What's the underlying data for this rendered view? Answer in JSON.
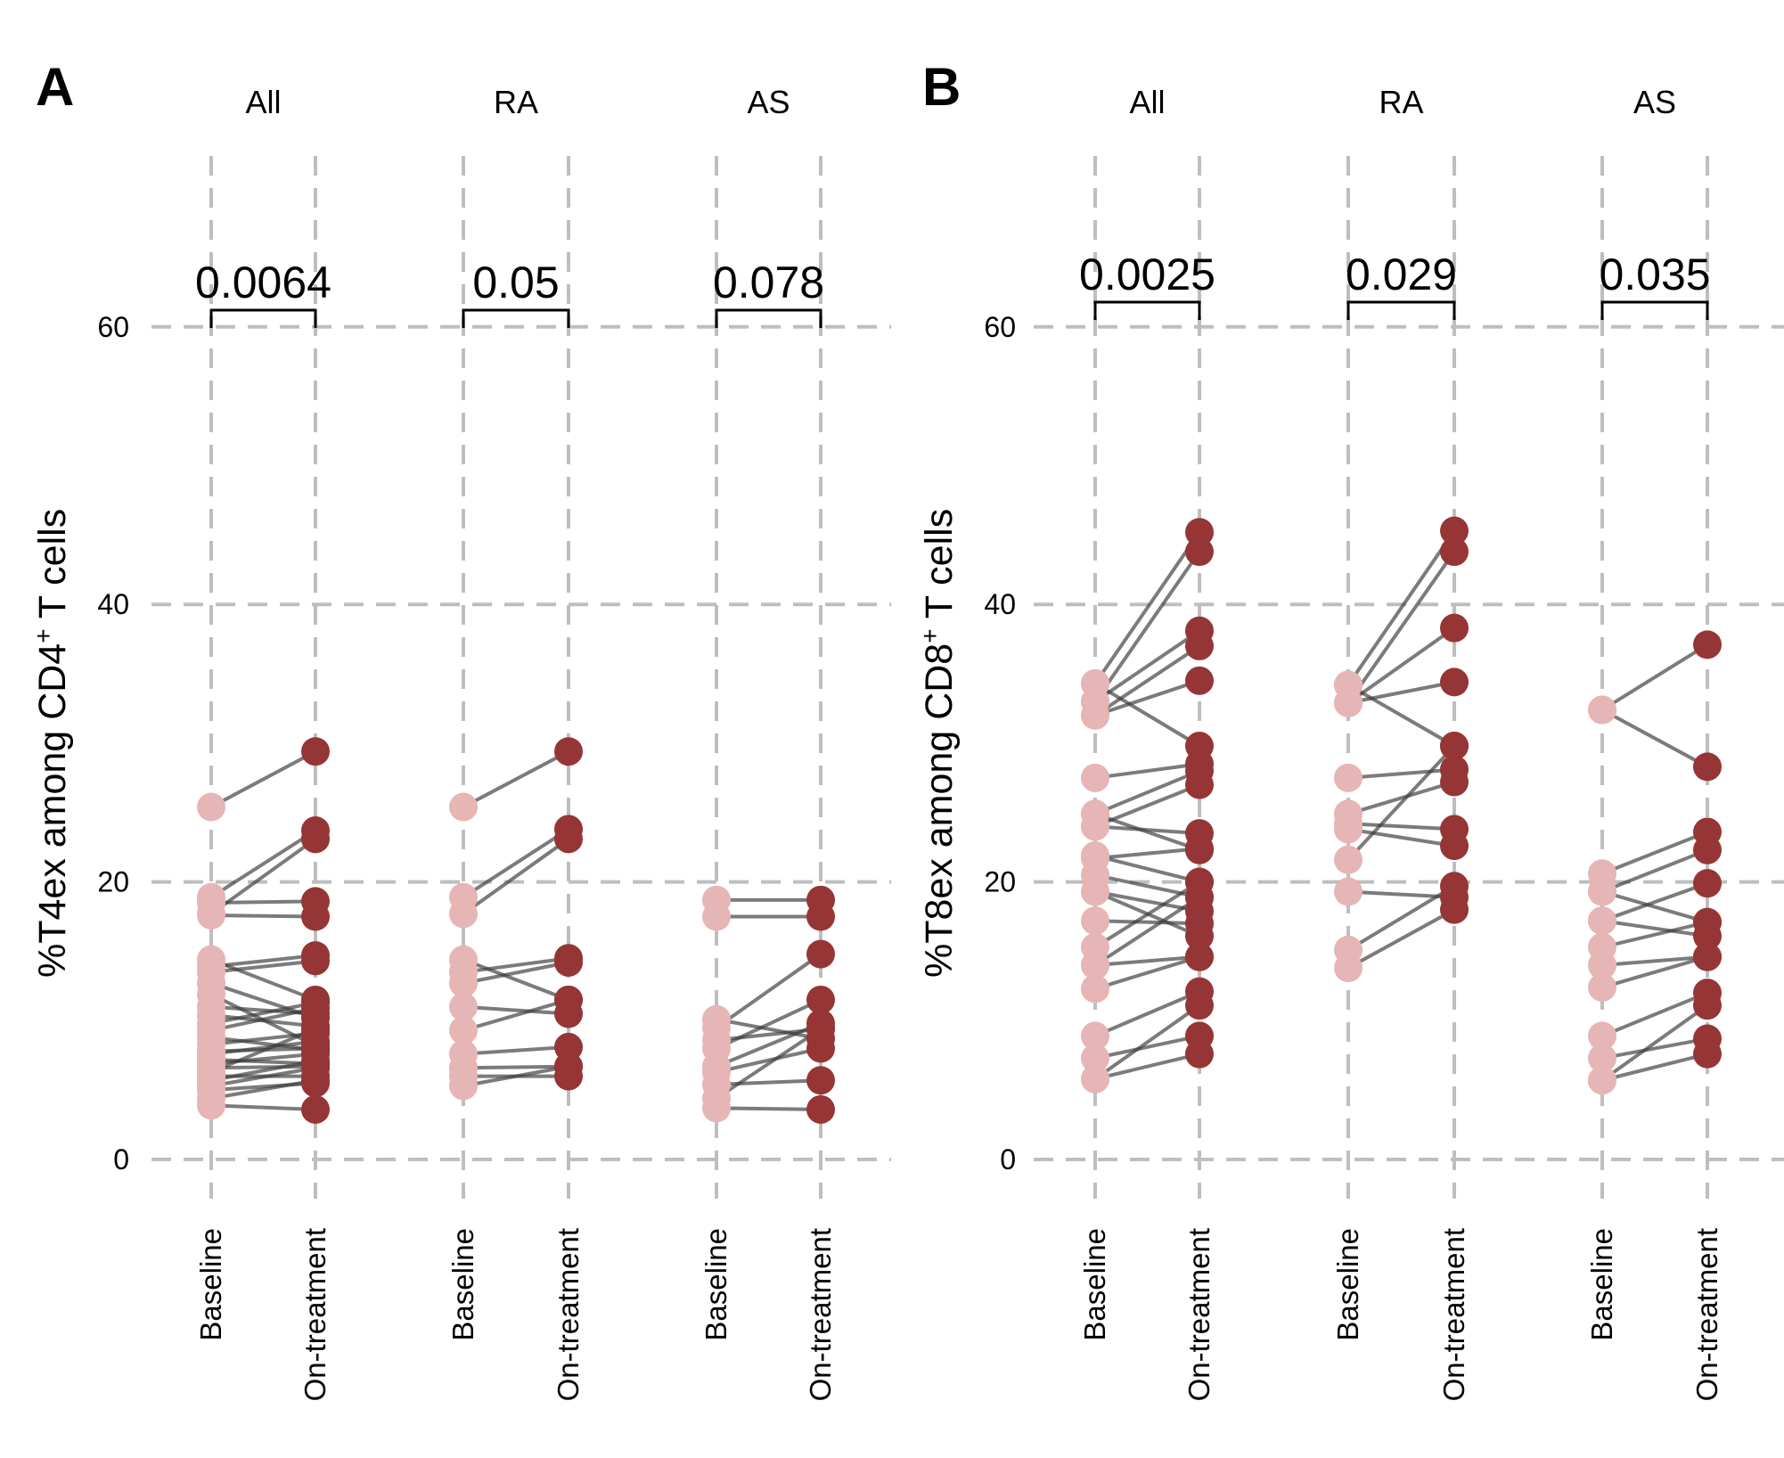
{
  "colors": {
    "baseline": "#e6b5b5",
    "on_treatment": "#963535",
    "pair_line": "#3c3c3c",
    "grid": "#bebebe"
  },
  "chart_data": [
    {
      "panel": "A",
      "type": "paired-dot",
      "ylabel_prefix": "%T4ex among CD4",
      "ylabel_sup": "+",
      "ylabel_suffix": " T cells",
      "ylim": [
        0,
        65
      ],
      "yticks": [
        0,
        20,
        40,
        60
      ],
      "grid": true,
      "x_categories": [
        "Baseline",
        "On-treatment"
      ],
      "facets": [
        {
          "title": "All",
          "p_value": "0.0064",
          "pairs": [
            [
              25.4,
              29.4
            ],
            [
              18.9,
              23.7
            ],
            [
              17.7,
              23.1
            ],
            [
              18.5,
              18.6
            ],
            [
              17.6,
              17.5
            ],
            [
              14.4,
              11.5
            ],
            [
              13.9,
              14.7
            ],
            [
              13.5,
              14.3
            ],
            [
              12.7,
              10.2
            ],
            [
              11.9,
              8.2
            ],
            [
              11.0,
              10.5
            ],
            [
              10.4,
              9.6
            ],
            [
              9.8,
              11.3
            ],
            [
              9.3,
              10.9
            ],
            [
              8.8,
              7.9
            ],
            [
              8.3,
              9.1
            ],
            [
              7.8,
              8.0
            ],
            [
              7.6,
              8.5
            ],
            [
              7.2,
              6.9
            ],
            [
              6.9,
              7.6
            ],
            [
              6.6,
              6.7
            ],
            [
              6.3,
              9.4
            ],
            [
              6.0,
              6.0
            ],
            [
              5.7,
              7.1
            ],
            [
              5.3,
              6.6
            ],
            [
              5.0,
              5.5
            ],
            [
              4.4,
              5.7
            ],
            [
              3.9,
              3.6
            ]
          ]
        },
        {
          "title": "RA",
          "p_value": "0.05",
          "pairs": [
            [
              25.4,
              29.4
            ],
            [
              18.9,
              23.8
            ],
            [
              17.7,
              23.1
            ],
            [
              14.4,
              11.5
            ],
            [
              13.5,
              14.5
            ],
            [
              12.7,
              14.2
            ],
            [
              11.0,
              10.5
            ],
            [
              9.3,
              11.5
            ],
            [
              7.6,
              8.1
            ],
            [
              6.6,
              6.7
            ],
            [
              6.0,
              6.0
            ],
            [
              5.3,
              6.7
            ]
          ]
        },
        {
          "title": "AS",
          "p_value": "0.078",
          "pairs": [
            [
              18.7,
              18.7
            ],
            [
              17.5,
              17.5
            ],
            [
              10.1,
              8.7
            ],
            [
              9.5,
              14.8
            ],
            [
              8.6,
              9.4
            ],
            [
              8.0,
              11.5
            ],
            [
              6.7,
              9.8
            ],
            [
              6.3,
              8.0
            ],
            [
              5.4,
              5.7
            ],
            [
              4.4,
              9.4
            ],
            [
              3.7,
              3.6
            ]
          ]
        }
      ]
    },
    {
      "panel": "B",
      "type": "paired-dot",
      "ylabel_prefix": "%T8ex among CD8",
      "ylabel_sup": "+",
      "ylabel_suffix": " T cells",
      "ylim": [
        0,
        65
      ],
      "yticks": [
        0,
        20,
        40,
        60
      ],
      "grid": true,
      "x_categories": [
        "Baseline",
        "On-treatment"
      ],
      "facets": [
        {
          "title": "All",
          "p_value": "0.0025",
          "pairs": [
            [
              34.3,
              45.2
            ],
            [
              33.0,
              43.8
            ],
            [
              33.0,
              38.1
            ],
            [
              32.0,
              37.0
            ],
            [
              32.0,
              34.5
            ],
            [
              34.3,
              29.8
            ],
            [
              27.5,
              28.5
            ],
            [
              24.9,
              28.0
            ],
            [
              24.0,
              27.0
            ],
            [
              24.0,
              23.5
            ],
            [
              24.9,
              22.3
            ],
            [
              21.9,
              20.0
            ],
            [
              21.7,
              22.4
            ],
            [
              20.5,
              18.9
            ],
            [
              19.3,
              17.9
            ],
            [
              19.3,
              16.1
            ],
            [
              17.2,
              17.0
            ],
            [
              15.3,
              20.0
            ],
            [
              14.0,
              18.9
            ],
            [
              14.0,
              14.6
            ],
            [
              12.3,
              14.6
            ],
            [
              8.9,
              12.1
            ],
            [
              7.3,
              8.9
            ],
            [
              5.8,
              11.1
            ],
            [
              5.8,
              7.6
            ]
          ]
        },
        {
          "title": "RA",
          "p_value": "0.029",
          "pairs": [
            [
              34.2,
              45.3
            ],
            [
              32.9,
              43.8
            ],
            [
              32.9,
              38.3
            ],
            [
              32.9,
              34.4
            ],
            [
              34.2,
              29.8
            ],
            [
              27.5,
              28.1
            ],
            [
              24.9,
              27.2
            ],
            [
              24.2,
              23.8
            ],
            [
              23.8,
              22.6
            ],
            [
              21.6,
              29.8
            ],
            [
              19.3,
              18.9
            ],
            [
              15.1,
              19.7
            ],
            [
              13.8,
              18.0
            ]
          ]
        },
        {
          "title": "AS",
          "p_value": "0.035",
          "pairs": [
            [
              32.4,
              37.1
            ],
            [
              32.4,
              28.3
            ],
            [
              20.6,
              23.6
            ],
            [
              19.3,
              22.3
            ],
            [
              19.3,
              17.1
            ],
            [
              17.2,
              19.9
            ],
            [
              17.2,
              16.1
            ],
            [
              15.3,
              17.1
            ],
            [
              14.0,
              14.6
            ],
            [
              12.4,
              14.6
            ],
            [
              8.9,
              12.0
            ],
            [
              7.3,
              8.7
            ],
            [
              5.7,
              11.1
            ],
            [
              5.7,
              7.6
            ]
          ]
        }
      ]
    }
  ]
}
